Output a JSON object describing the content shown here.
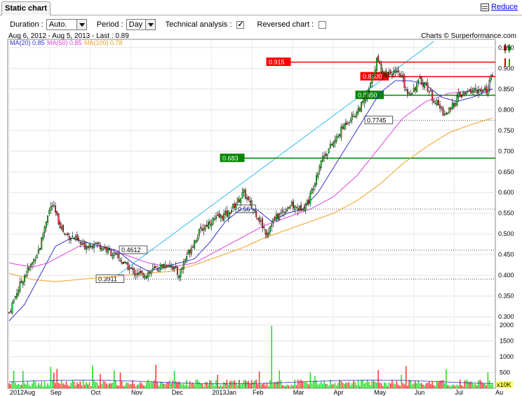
{
  "tab": {
    "label": "Static chart"
  },
  "reduce": {
    "label": "Reduce"
  },
  "controls": {
    "duration_label": "Duration :",
    "duration_value": "Auto.",
    "period_label": "Period :",
    "period_value": "Day",
    "technical_label": "Technical analysis :",
    "technical_checked": true,
    "reversed_label": "Reversed chart :",
    "reversed_checked": false
  },
  "info": {
    "range": "Aug 6, 2012 - Aug 5, 2013 - Last : 0.89",
    "credit": "Charts © Surperformance.com"
  },
  "legend": {
    "ma20": "MA(20)  0.85",
    "ma50": "MA(50)  0.85",
    "ma100": "MA(100)  0.78"
  },
  "colors": {
    "up": "#22dd22",
    "down": "#ff3333",
    "ma20": "#3333cc",
    "ma50": "#dd44dd",
    "ma100": "#f0a020",
    "trend": "#33bbee",
    "resistance": "#ff0000",
    "support": "#008800"
  },
  "chart_data": {
    "type": "candlestick",
    "price_axis": {
      "ylim": [
        0.28,
        0.97
      ],
      "ticks": [
        "0.300",
        "0.350",
        "0.400",
        "0.450",
        "0.500",
        "0.550",
        "0.600",
        "0.650",
        "0.700",
        "0.750",
        "0.800",
        "0.850",
        "0.900",
        "0.950"
      ]
    },
    "volume_axis": {
      "ticks": [
        "500",
        "1000",
        "1500",
        "2000"
      ],
      "unit": "x10K"
    },
    "x_labels": [
      "2012Aug",
      "Sep",
      "Oct",
      "Nov",
      "Dec",
      "2013Jan",
      "Feb",
      "Mar",
      "Apr",
      "May",
      "Jun",
      "Jul",
      "Au"
    ],
    "levels": [
      {
        "label": "0.915",
        "value": 0.915,
        "style": "red"
      },
      {
        "label": "0.8800",
        "value": 0.88,
        "style": "red"
      },
      {
        "label": "0.8350",
        "value": 0.835,
        "style": "green"
      },
      {
        "label": "0.683",
        "value": 0.683,
        "style": "green"
      },
      {
        "label": "0.7745",
        "value": 0.7745,
        "style": "dotted"
      },
      {
        "label": "0.56",
        "value": 0.56,
        "style": "dotted"
      },
      {
        "label": "0.4612",
        "value": 0.4612,
        "style": "dotted"
      },
      {
        "label": "0.3911",
        "value": 0.3911,
        "style": "dotted"
      }
    ],
    "close_path": [
      [
        0,
        0.31
      ],
      [
        5,
        0.36
      ],
      [
        10,
        0.4
      ],
      [
        15,
        0.43
      ],
      [
        20,
        0.47
      ],
      [
        25,
        0.55
      ],
      [
        28,
        0.57
      ],
      [
        32,
        0.53
      ],
      [
        36,
        0.5
      ],
      [
        42,
        0.49
      ],
      [
        48,
        0.47
      ],
      [
        55,
        0.48
      ],
      [
        62,
        0.465
      ],
      [
        68,
        0.45
      ],
      [
        74,
        0.43
      ],
      [
        80,
        0.41
      ],
      [
        86,
        0.4
      ],
      [
        92,
        0.41
      ],
      [
        98,
        0.42
      ],
      [
        104,
        0.43
      ],
      [
        110,
        0.4
      ],
      [
        114,
        0.44
      ],
      [
        118,
        0.47
      ],
      [
        124,
        0.51
      ],
      [
        130,
        0.53
      ],
      [
        136,
        0.54
      ],
      [
        142,
        0.55
      ],
      [
        148,
        0.58
      ],
      [
        152,
        0.6
      ],
      [
        156,
        0.57
      ],
      [
        160,
        0.55
      ],
      [
        164,
        0.52
      ],
      [
        167,
        0.5
      ],
      [
        170,
        0.53
      ],
      [
        176,
        0.55
      ],
      [
        182,
        0.57
      ],
      [
        188,
        0.56
      ],
      [
        194,
        0.58
      ],
      [
        198,
        0.63
      ],
      [
        202,
        0.68
      ],
      [
        206,
        0.7
      ],
      [
        212,
        0.73
      ],
      [
        218,
        0.77
      ],
      [
        224,
        0.79
      ],
      [
        230,
        0.82
      ],
      [
        234,
        0.86
      ],
      [
        238,
        0.92
      ],
      [
        242,
        0.89
      ],
      [
        248,
        0.89
      ],
      [
        254,
        0.88
      ],
      [
        258,
        0.84
      ],
      [
        262,
        0.85
      ],
      [
        266,
        0.87
      ],
      [
        270,
        0.86
      ],
      [
        274,
        0.83
      ],
      [
        278,
        0.81
      ],
      [
        282,
        0.79
      ],
      [
        286,
        0.8
      ],
      [
        290,
        0.83
      ],
      [
        296,
        0.84
      ],
      [
        302,
        0.85
      ],
      [
        306,
        0.84
      ],
      [
        310,
        0.85
      ],
      [
        313,
        0.89
      ]
    ],
    "ma20_path": [
      [
        0,
        0.29
      ],
      [
        10,
        0.33
      ],
      [
        20,
        0.4
      ],
      [
        30,
        0.47
      ],
      [
        40,
        0.49
      ],
      [
        50,
        0.48
      ],
      [
        60,
        0.47
      ],
      [
        70,
        0.46
      ],
      [
        80,
        0.43
      ],
      [
        90,
        0.41
      ],
      [
        100,
        0.42
      ],
      [
        110,
        0.43
      ],
      [
        120,
        0.44
      ],
      [
        130,
        0.48
      ],
      [
        140,
        0.53
      ],
      [
        150,
        0.56
      ],
      [
        160,
        0.56
      ],
      [
        170,
        0.53
      ],
      [
        180,
        0.55
      ],
      [
        190,
        0.56
      ],
      [
        200,
        0.6
      ],
      [
        210,
        0.66
      ],
      [
        220,
        0.72
      ],
      [
        230,
        0.78
      ],
      [
        240,
        0.84
      ],
      [
        250,
        0.87
      ],
      [
        260,
        0.87
      ],
      [
        270,
        0.86
      ],
      [
        280,
        0.83
      ],
      [
        290,
        0.82
      ],
      [
        300,
        0.83
      ],
      [
        313,
        0.85
      ]
    ],
    "ma50_path": [
      [
        0,
        0.43
      ],
      [
        15,
        0.42
      ],
      [
        25,
        0.43
      ],
      [
        35,
        0.45
      ],
      [
        45,
        0.47
      ],
      [
        60,
        0.47
      ],
      [
        75,
        0.45
      ],
      [
        90,
        0.43
      ],
      [
        105,
        0.42
      ],
      [
        120,
        0.43
      ],
      [
        135,
        0.46
      ],
      [
        150,
        0.49
      ],
      [
        165,
        0.52
      ],
      [
        180,
        0.54
      ],
      [
        195,
        0.56
      ],
      [
        210,
        0.59
      ],
      [
        225,
        0.64
      ],
      [
        240,
        0.71
      ],
      [
        255,
        0.78
      ],
      [
        270,
        0.82
      ],
      [
        285,
        0.84
      ],
      [
        300,
        0.845
      ],
      [
        313,
        0.85
      ]
    ],
    "ma100_path": [
      [
        0,
        0.405
      ],
      [
        15,
        0.39
      ],
      [
        30,
        0.385
      ],
      [
        45,
        0.39
      ],
      [
        60,
        0.395
      ],
      [
        75,
        0.4
      ],
      [
        90,
        0.405
      ],
      [
        105,
        0.41
      ],
      [
        120,
        0.425
      ],
      [
        135,
        0.445
      ],
      [
        150,
        0.465
      ],
      [
        165,
        0.49
      ],
      [
        180,
        0.51
      ],
      [
        195,
        0.53
      ],
      [
        210,
        0.55
      ],
      [
        225,
        0.58
      ],
      [
        240,
        0.62
      ],
      [
        255,
        0.67
      ],
      [
        270,
        0.71
      ],
      [
        285,
        0.745
      ],
      [
        300,
        0.765
      ],
      [
        313,
        0.78
      ]
    ],
    "trendline": [
      [
        70,
        0.4
      ],
      [
        275,
        0.965
      ]
    ]
  }
}
